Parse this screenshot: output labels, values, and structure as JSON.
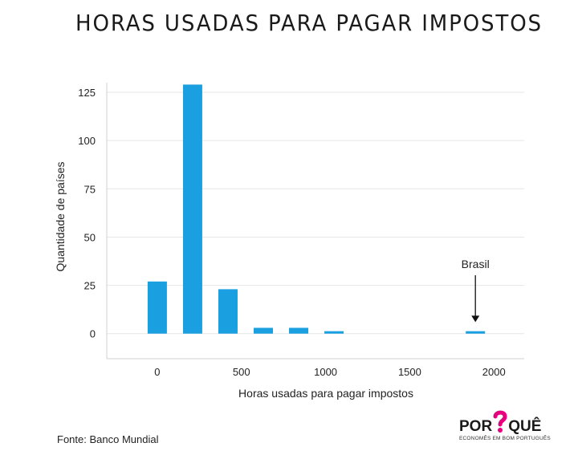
{
  "header": {
    "title": "HORAS USADAS PARA PAGAR IMPOSTOS"
  },
  "chart_data": {
    "type": "bar",
    "title": "HORAS USADAS PARA PAGAR IMPOSTOS",
    "xlabel": "Horas usadas para pagar impostos",
    "ylabel": "Quantidade de países",
    "x_ticks": [
      0,
      500,
      1000,
      1500,
      2000
    ],
    "y_ticks": [
      0,
      25,
      50,
      75,
      100,
      125
    ],
    "xlim": [
      -300,
      2180
    ],
    "ylim": [
      -13,
      130
    ],
    "grid": true,
    "bar_color": "#1a9fe0",
    "bins": [
      {
        "x": 0,
        "value": 27
      },
      {
        "x": 210,
        "value": 129
      },
      {
        "x": 420,
        "value": 23
      },
      {
        "x": 630,
        "value": 3
      },
      {
        "x": 840,
        "value": 3
      },
      {
        "x": 1050,
        "value": 1
      },
      {
        "x": 1260,
        "value": 0
      },
      {
        "x": 1470,
        "value": 0
      },
      {
        "x": 1680,
        "value": 0
      },
      {
        "x": 1890,
        "value": 1
      }
    ],
    "annotation": {
      "text": "Brasil",
      "x": 1890,
      "value": 1
    }
  },
  "footer": {
    "source": "Fonte: Banco Mundial",
    "logo_text_left": "POR",
    "logo_text_right": "QUÊ",
    "logo_tagline": "ECONOMÊS EM BOM PORTUGUÊS",
    "logo_accent": "#e6007e"
  }
}
